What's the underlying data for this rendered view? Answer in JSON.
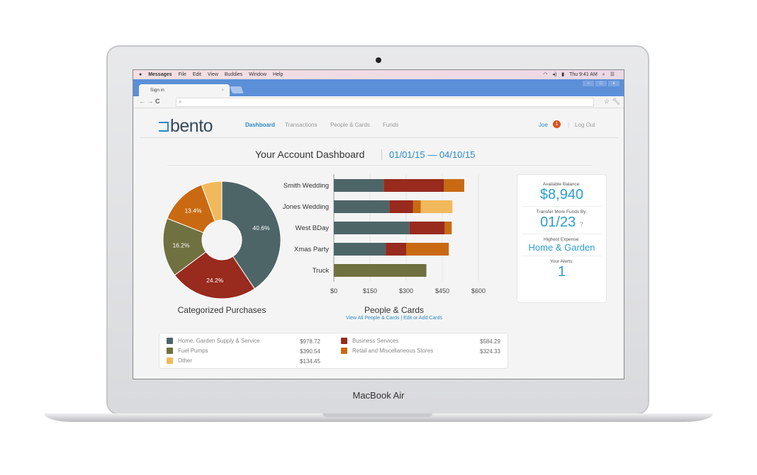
{
  "device": {
    "label": "MacBook Air"
  },
  "menubar": {
    "app": "Messages",
    "items": [
      "File",
      "Edit",
      "View",
      "Buddies",
      "Window",
      "Help"
    ],
    "clock": "Thu 9:41 AM"
  },
  "browser": {
    "tab_title": "Sign in",
    "url": ""
  },
  "nav": {
    "logo": "bento",
    "items": [
      "Dashboard",
      "Transactions",
      "People & Cards",
      "Funds"
    ],
    "active": "Dashboard",
    "user": "Joe",
    "alert_count": "1",
    "logout": "Log Out"
  },
  "dashboard": {
    "title": "Your Account Dashboard",
    "date_range": "01/01/15 — 04/10/15"
  },
  "colors": {
    "home": "#4e6568",
    "business": "#982a1e",
    "fuel": "#6f7140",
    "retail": "#c96a12",
    "other": "#f2b95c",
    "accent": "#2b9fcf"
  },
  "chart_data": [
    {
      "type": "pie",
      "title": "Categorized Purchases",
      "labels": [
        "Home, Garden Supply & Service",
        "Business Services",
        "Fuel Pumps",
        "Retail and Miscellaneous Stores",
        "Other"
      ],
      "values": [
        40.6,
        24.2,
        16.2,
        13.4,
        5.6
      ],
      "data_labels": [
        "40.6%",
        "24.2%",
        "16.2%",
        "13.4%",
        ""
      ],
      "donut": true
    },
    {
      "type": "bar",
      "orientation": "horizontal",
      "stacked": true,
      "title": "People & Cards",
      "categories": [
        "Smith Wedding",
        "Jones Wedding",
        "West BDay",
        "Xmas Party",
        "Truck"
      ],
      "series": [
        {
          "key": "home",
          "values": [
            207,
            230,
            314,
            215,
            0
          ]
        },
        {
          "key": "business",
          "values": [
            250,
            99,
            146,
            85,
            0
          ]
        },
        {
          "key": "retail",
          "values": [
            84,
            32,
            29,
            177,
            0
          ]
        },
        {
          "key": "other",
          "values": [
            0,
            131,
            0,
            0,
            0
          ]
        },
        {
          "key": "fuel",
          "values": [
            0,
            0,
            0,
            0,
            384
          ]
        }
      ],
      "xlim": [
        0,
        600
      ],
      "xticks": [
        "$0",
        "$150",
        "$300",
        "$450",
        "$600"
      ],
      "grid": true
    }
  ],
  "people_links": {
    "view_all": "View All People & Cards",
    "separator": "|",
    "edit": "Edit or Add Cards"
  },
  "summary": {
    "balance_label": "Available Balance:",
    "balance": "$8,940",
    "transfer_label": "Transfer More Funds By:",
    "transfer_date": "01/23",
    "expense_label": "Highest Expense:",
    "expense": "Home & Garden",
    "alerts_label": "Your Alerts:",
    "alerts": "1"
  },
  "legend": [
    {
      "label": "Home, Garden Supply & Service",
      "amount": "$978.72",
      "color": "#4e6568"
    },
    {
      "label": "Fuel Pumps",
      "amount": "$390.54",
      "color": "#6f7140"
    },
    {
      "label": "Other",
      "amount": "$134.45",
      "color": "#f2b95c"
    },
    {
      "label": "Business Services",
      "amount": "$584.29",
      "color": "#982a1e"
    },
    {
      "label": "Retail and Miscellaneous Stores",
      "amount": "$324.33",
      "color": "#c96a12"
    }
  ]
}
